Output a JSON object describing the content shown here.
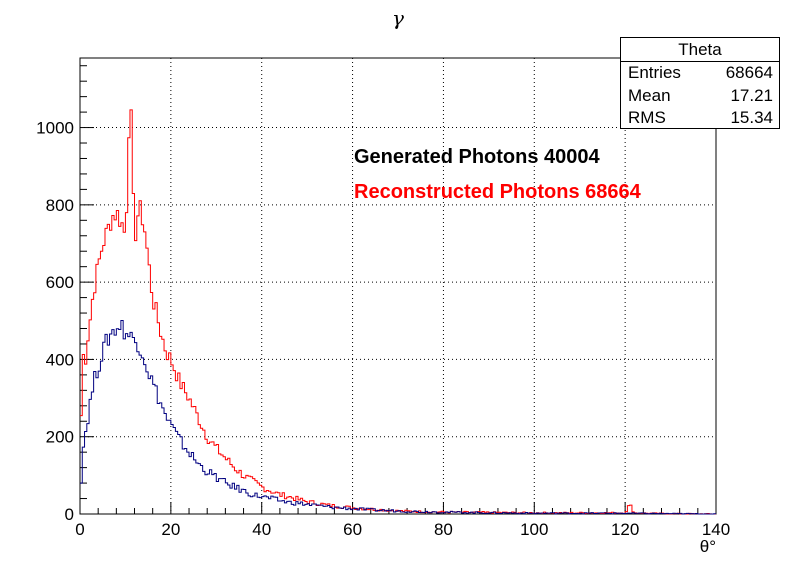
{
  "chart_data": {
    "type": "line",
    "title": "γ",
    "xlabel": "θ°",
    "ylabel": "",
    "xlim": [
      0,
      140
    ],
    "ylim": [
      0,
      1180
    ],
    "x_ticks": [
      0,
      20,
      40,
      60,
      80,
      100,
      120,
      140
    ],
    "y_ticks": [
      0,
      200,
      400,
      600,
      800,
      1000
    ],
    "grid": true,
    "series": [
      {
        "name": "Reconstructed Photons 68664",
        "color": "#ff0000",
        "x": [
          0,
          0.5,
          1,
          1.5,
          2,
          3,
          4,
          5,
          6,
          7,
          8,
          9,
          10,
          10.5,
          11,
          11.5,
          12,
          12.5,
          13,
          14,
          15,
          16,
          17,
          18,
          19,
          20,
          22,
          24,
          26,
          28,
          30,
          32,
          34,
          36,
          38,
          40,
          42,
          44,
          46,
          48,
          50,
          55,
          60,
          65,
          70,
          75,
          80,
          90,
          100,
          110,
          120,
          121,
          122,
          125,
          130,
          140
        ],
        "y": [
          60,
          450,
          370,
          440,
          480,
          580,
          640,
          700,
          730,
          770,
          780,
          760,
          720,
          880,
          1130,
          900,
          700,
          760,
          790,
          760,
          660,
          560,
          510,
          460,
          420,
          400,
          340,
          300,
          250,
          200,
          170,
          145,
          120,
          100,
          85,
          70,
          60,
          50,
          45,
          38,
          32,
          22,
          16,
          12,
          8,
          6,
          5,
          4,
          3,
          3,
          3,
          25,
          3,
          2,
          1,
          0
        ]
      },
      {
        "name": "Generated Photons 40004",
        "color": "#000080",
        "x": [
          0,
          0.5,
          1,
          1.5,
          2,
          3,
          4,
          5,
          6,
          7,
          8,
          9,
          10,
          11,
          12,
          13,
          14,
          15,
          16,
          17,
          18,
          19,
          20,
          22,
          24,
          26,
          28,
          30,
          32,
          34,
          36,
          38,
          40,
          42,
          44,
          46,
          48,
          50,
          55,
          60,
          65,
          70,
          75,
          80,
          90,
          100,
          110,
          120,
          130,
          140
        ],
        "y": [
          30,
          150,
          200,
          230,
          270,
          340,
          380,
          420,
          450,
          470,
          480,
          490,
          470,
          460,
          450,
          440,
          410,
          370,
          340,
          310,
          280,
          250,
          230,
          190,
          160,
          130,
          110,
          95,
          80,
          70,
          60,
          50,
          45,
          40,
          35,
          30,
          28,
          25,
          18,
          14,
          10,
          8,
          6,
          5,
          3,
          2,
          2,
          2,
          1,
          0
        ]
      }
    ],
    "annotations": [
      "Generated Photons 40004",
      "Reconstructed Photons 68664"
    ],
    "stats_box": {
      "title": "Theta",
      "rows": [
        {
          "label": "Entries",
          "value": "68664"
        },
        {
          "label": "Mean",
          "value": "17.21"
        },
        {
          "label": "RMS",
          "value": "15.34"
        }
      ]
    }
  }
}
